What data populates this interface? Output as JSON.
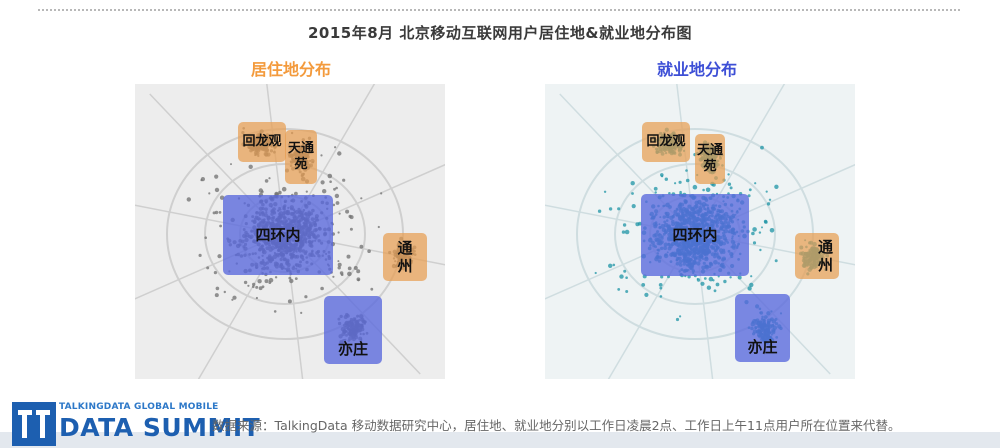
{
  "page": {
    "title": "2015年8月 北京移动互联网用户居住地&就业地分布图"
  },
  "maps": {
    "residence": {
      "title": "居住地分布",
      "dot_color": "#6f6f6f",
      "road_color": "#cfcfcf",
      "labels": {
        "huilongguan": "回龙观",
        "tiantongyuan": "天通苑",
        "sihuannei": "四环内",
        "tongzhou": "通州",
        "yizhuang": "亦庄"
      }
    },
    "work": {
      "title": "就业地分布",
      "dot_color": "#1e94a6",
      "road_color": "#cfdde0",
      "labels": {
        "huilongguan": "回龙观",
        "tiantongyuan": "天通苑",
        "sihuannei": "四环内",
        "tongzhou": "通州",
        "yizhuang": "亦庄"
      }
    }
  },
  "logo": {
    "subtitle": "TALKINGDATA GLOBAL MOBILE",
    "name": "DATA SUMMIT"
  },
  "footer": {
    "source": "数据来源：TalkingData 移动数据研究中心，居住地、就业地分别以工作日凌晨2点、工作日上午11点用户所在位置来代替。"
  },
  "colors": {
    "region_orange": "#e89e52",
    "region_blue": "#5868dc",
    "residence_title": "#f39a3c",
    "work_title": "#3d4fd6",
    "logo_blue": "#1d5fb0"
  }
}
